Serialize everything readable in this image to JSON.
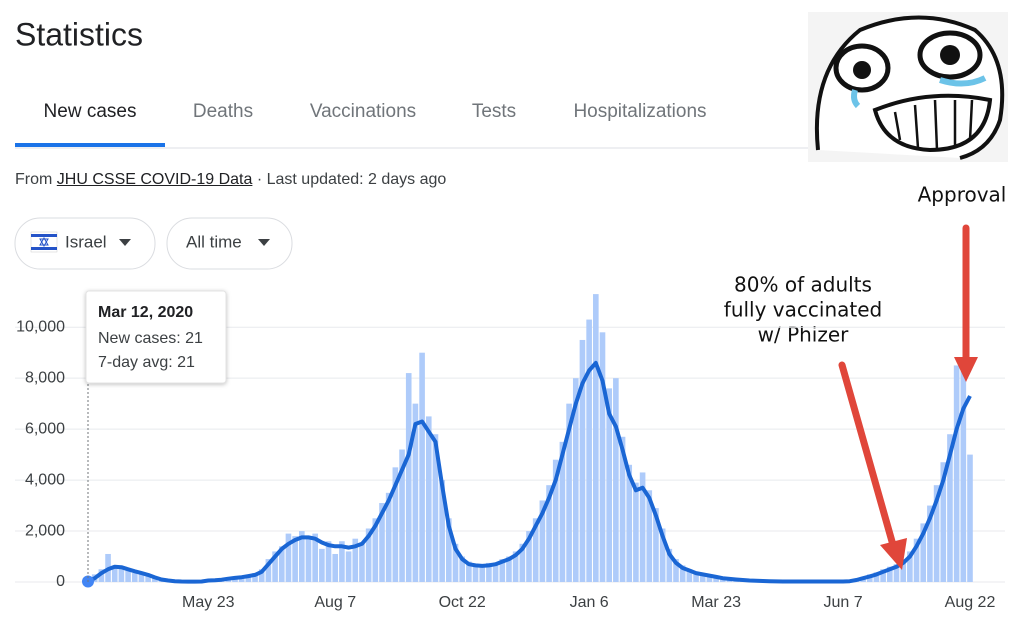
{
  "header": {
    "title": "Statistics"
  },
  "tabs": [
    "New cases",
    "Deaths",
    "Vaccinations",
    "Tests",
    "Hospitalizations"
  ],
  "source": {
    "prefix": "From",
    "link": "JHU CSSE COVID-19 Data",
    "suffix": "· Last updated: 2 days ago"
  },
  "filters": [
    "Israel",
    "All time"
  ],
  "chart_data": {
    "type": "bar",
    "categories": [
      null,
      null,
      null,
      null,
      null,
      null,
      null,
      null,
      null,
      null,
      null,
      null,
      null,
      null,
      null,
      null,
      null,
      null,
      "May 23",
      null,
      null,
      null,
      null,
      null,
      null,
      null,
      null,
      null,
      null,
      null,
      null,
      null,
      null,
      null,
      null,
      null,
      null,
      "Aug 7",
      null,
      null,
      null,
      null,
      null,
      null,
      null,
      null,
      null,
      null,
      null,
      null,
      null,
      null,
      null,
      null,
      null,
      null,
      "Oct 22",
      null,
      null,
      null,
      null,
      null,
      null,
      null,
      null,
      null,
      null,
      null,
      null,
      null,
      null,
      null,
      null,
      null,
      null,
      "Jan 6",
      null,
      null,
      null,
      null,
      null,
      null,
      null,
      null,
      null,
      null,
      null,
      null,
      null,
      null,
      null,
      null,
      null,
      null,
      "Mar 23",
      null,
      null,
      null,
      null,
      null,
      null,
      null,
      null,
      null,
      null,
      null,
      null,
      null,
      null,
      null,
      null,
      null,
      null,
      "Jun 7",
      null,
      null,
      null,
      null,
      null,
      null,
      null,
      null,
      null,
      null,
      null,
      null,
      null,
      null,
      null,
      null,
      null,
      null,
      "Aug 22"
    ],
    "series": [
      {
        "type": "bar",
        "color": "#aecbfa",
        "values": [
          21,
          300,
          500,
          1100,
          650,
          550,
          450,
          350,
          300,
          250,
          150,
          80,
          40,
          20,
          15,
          10,
          20,
          30,
          50,
          80,
          100,
          150,
          180,
          200,
          250,
          350,
          500,
          900,
          1200,
          1400,
          1900,
          1800,
          2000,
          1700,
          1900,
          1300,
          1600,
          1100,
          1600,
          1200,
          1700,
          1500,
          2100,
          2500,
          3100,
          3500,
          4500,
          5200,
          8200,
          7000,
          9000,
          6500,
          5800,
          4000,
          2500,
          1500,
          1000,
          800,
          700,
          600,
          750,
          650,
          900,
          1000,
          1200,
          1500,
          2000,
          2500,
          3200,
          3800,
          4800,
          5500,
          7000,
          8000,
          9500,
          10300,
          11300,
          9800,
          7600,
          8000,
          5700,
          4600,
          3900,
          4300,
          3600,
          2900,
          2100,
          1300,
          900,
          650,
          500,
          400,
          350,
          300,
          250,
          180,
          150,
          120,
          90,
          70,
          60,
          50,
          40,
          30,
          25,
          25,
          20,
          20,
          25,
          20,
          20,
          30,
          20,
          25,
          50,
          120,
          200,
          300,
          380,
          500,
          600,
          700,
          900,
          1200,
          1700,
          2300,
          3000,
          3800,
          4700,
          5800,
          8500,
          8800,
          5000
        ]
      },
      {
        "type": "line",
        "color": "#1a66d4",
        "values": [
          21,
          150,
          350,
          500,
          600,
          580,
          500,
          420,
          350,
          280,
          180,
          100,
          60,
          30,
          20,
          15,
          15,
          20,
          60,
          70,
          90,
          130,
          160,
          190,
          230,
          280,
          400,
          700,
          1000,
          1300,
          1500,
          1650,
          1750,
          1750,
          1700,
          1550,
          1450,
          1400,
          1400,
          1350,
          1400,
          1500,
          1800,
          2200,
          2700,
          3200,
          3800,
          4400,
          5000,
          6200,
          6300,
          5900,
          5500,
          3800,
          2200,
          1300,
          900,
          700,
          650,
          630,
          650,
          700,
          800,
          900,
          1050,
          1300,
          1700,
          2200,
          2700,
          3300,
          4000,
          5000,
          6000,
          7000,
          7800,
          8300,
          8600,
          7900,
          6600,
          6100,
          5200,
          4200,
          3600,
          3700,
          3300,
          2600,
          1800,
          1100,
          750,
          550,
          450,
          350,
          300,
          250,
          200,
          150,
          120,
          100,
          80,
          60,
          50,
          40,
          30,
          25,
          20,
          20,
          20,
          20,
          20,
          20,
          20,
          20,
          20,
          20,
          30,
          80,
          150,
          220,
          300,
          400,
          500,
          600,
          750,
          1000,
          1400,
          1900,
          2500,
          3200,
          4000,
          5000,
          6000,
          6800,
          7300
        ]
      }
    ],
    "ylim": [
      0,
      11500
    ],
    "yticks": [
      0,
      {
        "value": 2000,
        "label": "2,000"
      },
      {
        "value": 4000,
        "label": "4,000"
      },
      {
        "value": 6000,
        "label": "6,000"
      },
      {
        "value": 8000,
        "label": "8,000"
      },
      {
        "value": 10000,
        "label": "10,000"
      }
    ],
    "grid": true,
    "tooltip": {
      "title": "Mar 12, 2020",
      "lines": [
        "New cases: 21",
        "7-day avg: 21"
      ]
    },
    "annotations": [
      "80% of adults",
      "fully vaccinated",
      "w/ Phizer",
      "Approval"
    ]
  }
}
